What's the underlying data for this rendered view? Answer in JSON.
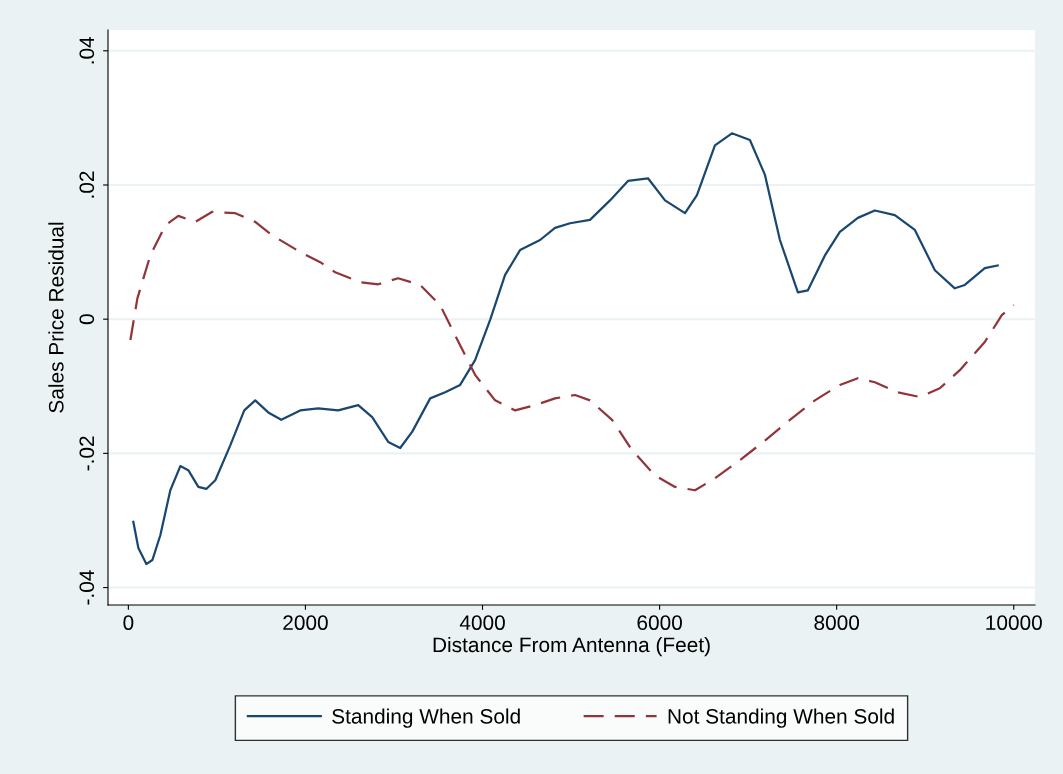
{
  "chart_data": {
    "type": "line",
    "xlabel": "Distance From Antenna (Feet)",
    "ylabel": "Sales Price Residual",
    "xlim": [
      -230,
      10240
    ],
    "ylim": [
      -0.0426,
      0.0431
    ],
    "xticks": [
      0,
      2000,
      4000,
      6000,
      8000,
      10000
    ],
    "yticks": [
      {
        "value": -0.04,
        "label": "-.04"
      },
      {
        "value": -0.02,
        "label": "-.02"
      },
      {
        "value": 0,
        "label": "0"
      },
      {
        "value": 0.02,
        "label": ".02"
      },
      {
        "value": 0.04,
        "label": ".04"
      }
    ],
    "grid": "y",
    "legend": "bottom",
    "marker": "none",
    "series": [
      {
        "name": "Standing When Sold",
        "color": "#1a476f",
        "line_style": "solid",
        "x": [
          56,
          113,
          203,
          271,
          361,
          474,
          587,
          677,
          790,
          880,
          982,
          1151,
          1309,
          1433,
          1580,
          1727,
          1941,
          2144,
          2370,
          2596,
          2754,
          2935,
          3070,
          3205,
          3409,
          3578,
          3747,
          3916,
          4086,
          4255,
          4424,
          4650,
          4819,
          4989,
          5214,
          5440,
          5643,
          5869,
          6061,
          6287,
          6422,
          6625,
          6817,
          7020,
          7190,
          7359,
          7562,
          7675,
          7867,
          8036,
          8239,
          8431,
          8657,
          8883,
          9109,
          9334,
          9447,
          9673,
          9819
        ],
        "values": [
          -0.0302,
          -0.0341,
          -0.0365,
          -0.0359,
          -0.0322,
          -0.0255,
          -0.0219,
          -0.0225,
          -0.025,
          -0.0253,
          -0.024,
          -0.0188,
          -0.0136,
          -0.0121,
          -0.0139,
          -0.015,
          -0.0136,
          -0.0133,
          -0.0136,
          -0.0128,
          -0.0146,
          -0.0183,
          -0.0192,
          -0.0168,
          -0.0118,
          -0.0109,
          -0.0098,
          -0.0061,
          -0.0001,
          0.0066,
          0.0103,
          0.0118,
          0.0136,
          0.0143,
          0.0148,
          0.0177,
          0.0206,
          0.021,
          0.0177,
          0.0158,
          0.0185,
          0.0259,
          0.0277,
          0.0267,
          0.0215,
          0.0118,
          0.004,
          0.0043,
          0.0095,
          0.013,
          0.0151,
          0.0162,
          0.0155,
          0.0133,
          0.0073,
          0.0046,
          0.0051,
          0.0076,
          0.008
        ]
      },
      {
        "name": "Not Standing When Sold",
        "color": "#90353b",
        "line_style": "dashed",
        "x": [
          23,
          102,
          248,
          418,
          564,
          756,
          948,
          1208,
          1433,
          1625,
          1941,
          2167,
          2336,
          2619,
          2822,
          3047,
          3296,
          3521,
          3747,
          3916,
          4142,
          4368,
          4594,
          4819,
          5045,
          5214,
          5463,
          5688,
          5948,
          6174,
          6400,
          6625,
          6907,
          7190,
          7472,
          7754,
          8036,
          8239,
          8431,
          8691,
          8939,
          9165,
          9391,
          9673,
          9865,
          10000
        ],
        "values": [
          -0.0031,
          0.0031,
          0.0095,
          0.014,
          0.0154,
          0.0145,
          0.016,
          0.0158,
          0.0145,
          0.0125,
          0.01,
          0.0085,
          0.007,
          0.0055,
          0.0052,
          0.0061,
          0.0051,
          0.0021,
          -0.0039,
          -0.0083,
          -0.0121,
          -0.0136,
          -0.0128,
          -0.0118,
          -0.0113,
          -0.0121,
          -0.015,
          -0.0195,
          -0.0233,
          -0.025,
          -0.0255,
          -0.0237,
          -0.021,
          -0.0181,
          -0.015,
          -0.0121,
          -0.0098,
          -0.0088,
          -0.0094,
          -0.0109,
          -0.0116,
          -0.0103,
          -0.0076,
          -0.0034,
          0.0006,
          0.0021
        ]
      }
    ]
  }
}
